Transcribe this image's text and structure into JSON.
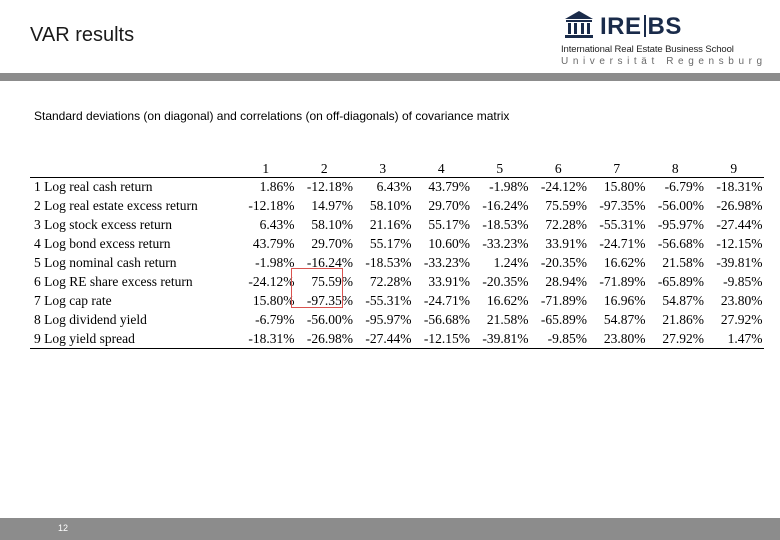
{
  "header": {
    "title": "VAR results",
    "logo": {
      "name_left": "IRE",
      "name_right": "BS",
      "line1": "International Real Estate Business School",
      "line2": "Universität Regensburg"
    }
  },
  "subtitle": "Standard deviations (on diagonal) and correlations (on off-diagonals) of covariance matrix",
  "matrix": {
    "columns": [
      "1",
      "2",
      "3",
      "4",
      "5",
      "6",
      "7",
      "8",
      "9"
    ],
    "rows": [
      {
        "label": "1 Log real cash return",
        "values": [
          "1.86%",
          "-12.18%",
          "6.43%",
          "43.79%",
          "-1.98%",
          "-24.12%",
          "15.80%",
          "-6.79%",
          "-18.31%"
        ]
      },
      {
        "label": "2 Log real estate excess return",
        "values": [
          "-12.18%",
          "14.97%",
          "58.10%",
          "29.70%",
          "-16.24%",
          "75.59%",
          "-97.35%",
          "-56.00%",
          "-26.98%"
        ]
      },
      {
        "label": "3 Log stock excess return",
        "values": [
          "6.43%",
          "58.10%",
          "21.16%",
          "55.17%",
          "-18.53%",
          "72.28%",
          "-55.31%",
          "-95.97%",
          "-27.44%"
        ]
      },
      {
        "label": "4 Log bond excess return",
        "values": [
          "43.79%",
          "29.70%",
          "55.17%",
          "10.60%",
          "-33.23%",
          "33.91%",
          "-24.71%",
          "-56.68%",
          "-12.15%"
        ]
      },
      {
        "label": "5 Log nominal cash return",
        "values": [
          "-1.98%",
          "-16.24%",
          "-18.53%",
          "-33.23%",
          "1.24%",
          "-20.35%",
          "16.62%",
          "21.58%",
          "-39.81%"
        ]
      },
      {
        "label": "6 Log RE share excess return",
        "values": [
          "-24.12%",
          "75.59%",
          "72.28%",
          "33.91%",
          "-20.35%",
          "28.94%",
          "-71.89%",
          "-65.89%",
          "-9.85%"
        ]
      },
      {
        "label": "7 Log cap rate",
        "values": [
          "15.80%",
          "-97.35%",
          "-55.31%",
          "-24.71%",
          "16.62%",
          "-71.89%",
          "16.96%",
          "54.87%",
          "23.80%"
        ]
      },
      {
        "label": "8 Log dividend yield",
        "values": [
          "-6.79%",
          "-56.00%",
          "-95.97%",
          "-56.68%",
          "21.58%",
          "-65.89%",
          "54.87%",
          "21.86%",
          "27.92%"
        ]
      },
      {
        "label": "9 Log yield spread",
        "values": [
          "-18.31%",
          "-26.98%",
          "-27.44%",
          "-12.15%",
          "-39.81%",
          "-9.85%",
          "23.80%",
          "27.92%",
          "1.47%"
        ]
      }
    ],
    "highlight_color": "#d9534f"
  },
  "footer": {
    "page_number": "12"
  },
  "colors": {
    "rule": "#8c8c8c",
    "logo_navy": "#1a2b4a"
  }
}
